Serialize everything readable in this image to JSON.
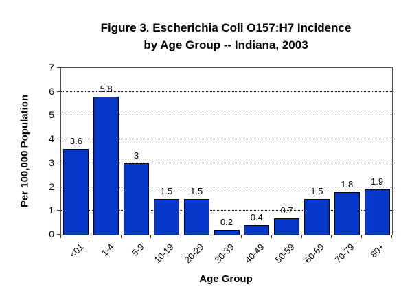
{
  "figure": {
    "title_line1": "Figure 3. Escherichia Coli O157:H7 Incidence",
    "title_line2": "by Age Group -- Indiana, 2003"
  },
  "chart_data": {
    "type": "bar",
    "title": "Figure 3. Escherichia Coli O157:H7 Incidence by Age Group -- Indiana, 2003",
    "categories": [
      "<01",
      "1-4",
      "5-9",
      "10-19",
      "20-29",
      "30-39",
      "40-49",
      "50-59",
      "60-69",
      "70-79",
      "80+"
    ],
    "values": [
      3.6,
      5.8,
      3,
      1.5,
      1.5,
      0.2,
      0.4,
      0.7,
      1.5,
      1.8,
      1.9
    ],
    "value_labels": [
      "3.6",
      "5.8",
      "3",
      "1.5",
      "1.5",
      "0.2",
      "0.4",
      "0.7",
      "1.5",
      "1.8",
      "1.9"
    ],
    "xlabel": "Age Group",
    "ylabel": "Per 100,000 Population",
    "ylim": [
      0,
      7
    ],
    "yticks": [
      0,
      1,
      2,
      3,
      4,
      5,
      6,
      7
    ],
    "grid": "horizontal-dotted",
    "legend": "none",
    "bar_color": "#0537c8",
    "bar_border_color": "#000000",
    "plot_border_color": "#4d4d4d"
  }
}
